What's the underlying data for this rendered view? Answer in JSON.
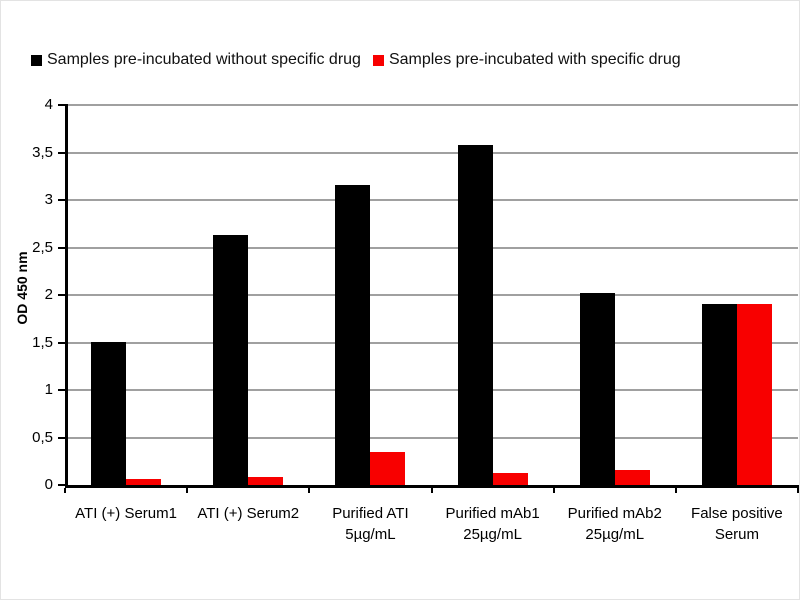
{
  "chart_data": {
    "type": "bar",
    "title": "",
    "ylabel": "OD 450 nm",
    "xlabel": "",
    "ylim": [
      0,
      4
    ],
    "ytick_step": 0.5,
    "ytick_labels": [
      "0",
      "0,5",
      "1",
      "1,5",
      "2",
      "2,5",
      "3",
      "3,5",
      "4"
    ],
    "grid": true,
    "legend_position": "top",
    "categories": [
      "ATI (+) Serum1",
      "ATI (+) Serum2",
      "Purified ATI\n5µg/mL",
      "Purified mAb1\n25µg/mL",
      "Purified mAb2\n25µg/mL",
      "False positive\nSerum"
    ],
    "series": [
      {
        "name": "Samples pre-incubated without specific drug",
        "color": "#000000",
        "values": [
          1.51,
          2.63,
          3.16,
          3.58,
          2.02,
          1.91
        ]
      },
      {
        "name": "Samples pre-incubated with specific drug",
        "color": "#f80000",
        "values": [
          0.06,
          0.08,
          0.35,
          0.13,
          0.16,
          1.91
        ]
      }
    ],
    "colors": {
      "axis": "#000000",
      "gridline": "#a0a0a0",
      "text": "#1a1a1a"
    }
  }
}
